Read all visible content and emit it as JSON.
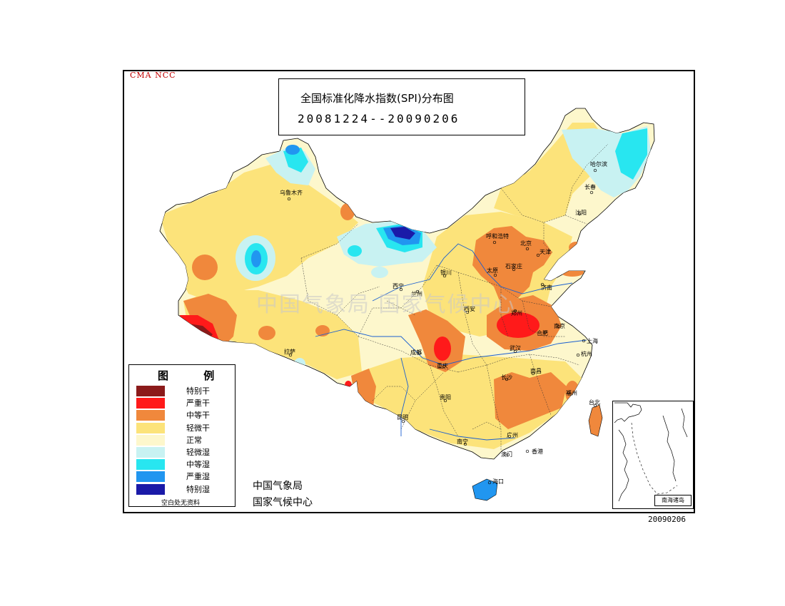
{
  "map": {
    "watermark_code": "CMA  NCC",
    "title": "全国标准化降水指数(SPI)分布图",
    "period": "20081224--20090206",
    "agency": "中国气象局",
    "center": "国家气候中心",
    "date_code": "20090206",
    "watermark_text": "中国气象局  国家气候中心"
  },
  "legend": {
    "title": "图  例",
    "items": [
      {
        "label": "特别干",
        "color": "#8b1a1a"
      },
      {
        "label": "严重干",
        "color": "#ff1a1a"
      },
      {
        "label": "中等干",
        "color": "#f0883c"
      },
      {
        "label": "轻微干",
        "color": "#fce37a"
      },
      {
        "label": "正常",
        "color": "#fdf7cc"
      },
      {
        "label": "轻微湿",
        "color": "#c8f2f2"
      },
      {
        "label": "中等湿",
        "color": "#28e6f0"
      },
      {
        "label": "严重湿",
        "color": "#2196f0"
      },
      {
        "label": "特别湿",
        "color": "#1a1aa8"
      }
    ],
    "note": "空白处无资料"
  },
  "inset": {
    "label": "南海诸岛"
  },
  "cities": [
    {
      "name": "乌鲁木齐"
    },
    {
      "name": "哈尔滨"
    },
    {
      "name": "长春"
    },
    {
      "name": "沈阳"
    },
    {
      "name": "呼和浩特"
    },
    {
      "name": "北京"
    },
    {
      "name": "天津"
    },
    {
      "name": "太原"
    },
    {
      "name": "石家庄"
    },
    {
      "name": "银川"
    },
    {
      "name": "西宁"
    },
    {
      "name": "兰州"
    },
    {
      "name": "济南"
    },
    {
      "name": "西安"
    },
    {
      "name": "郑州"
    },
    {
      "name": "南京"
    },
    {
      "name": "合肥"
    },
    {
      "name": "上海"
    },
    {
      "name": "拉萨"
    },
    {
      "name": "成都"
    },
    {
      "name": "武汉"
    },
    {
      "name": "重庆"
    },
    {
      "name": "杭州"
    },
    {
      "name": "长沙"
    },
    {
      "name": "南昌"
    },
    {
      "name": "贵阳"
    },
    {
      "name": "福州"
    },
    {
      "name": "台北"
    },
    {
      "name": "昆明"
    },
    {
      "name": "南宁"
    },
    {
      "name": "广州"
    },
    {
      "name": "澳门"
    },
    {
      "name": "香港"
    },
    {
      "name": "海口"
    }
  ]
}
